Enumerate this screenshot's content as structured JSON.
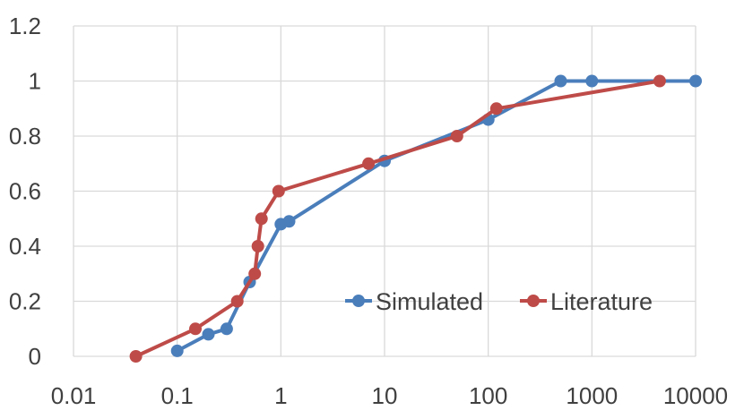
{
  "chart_data": {
    "type": "scatter",
    "x_scale": "log",
    "xlim": [
      0.01,
      10000
    ],
    "ylim": [
      0,
      1.2
    ],
    "x_ticks": [
      "0.01",
      "0.1",
      "1",
      "10",
      "100",
      "1000",
      "10000"
    ],
    "y_ticks": [
      "0",
      "0.2",
      "0.4",
      "0.6",
      "0.8",
      "1",
      "1.2"
    ],
    "grid": true,
    "legend_position": "bottom-right",
    "series": [
      {
        "name": "Simulated",
        "color": "#4a7ebb",
        "points": [
          [
            0.1,
            0.02
          ],
          [
            0.2,
            0.08
          ],
          [
            0.3,
            0.1
          ],
          [
            0.5,
            0.27
          ],
          [
            1.0,
            0.48
          ],
          [
            1.2,
            0.49
          ],
          [
            10,
            0.71
          ],
          [
            100,
            0.86
          ],
          [
            500,
            1.0
          ],
          [
            1000,
            1.0
          ],
          [
            10000,
            1.0
          ]
        ]
      },
      {
        "name": "Literature",
        "color": "#be4b48",
        "points": [
          [
            0.04,
            0.0
          ],
          [
            0.15,
            0.1
          ],
          [
            0.38,
            0.2
          ],
          [
            0.56,
            0.3
          ],
          [
            0.6,
            0.4
          ],
          [
            0.65,
            0.5
          ],
          [
            0.95,
            0.6
          ],
          [
            7,
            0.7
          ],
          [
            50,
            0.8
          ],
          [
            120,
            0.9
          ],
          [
            4500,
            1.0
          ]
        ]
      }
    ]
  }
}
